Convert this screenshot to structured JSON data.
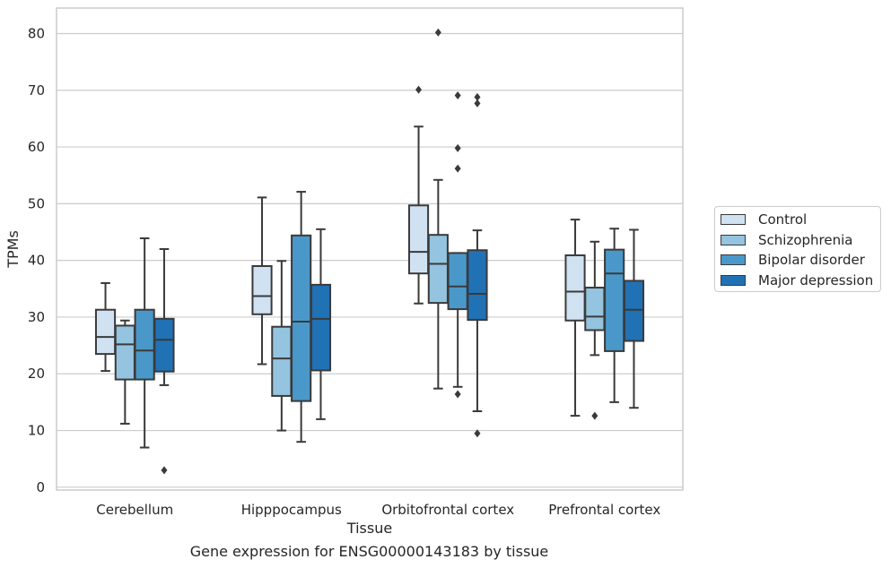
{
  "caption": "Gene expression for ENSG00000143183 by tissue",
  "chart_data": {
    "type": "boxplot",
    "xlabel": "Tissue",
    "ylabel": "TPMs",
    "ylim": [
      -0.5,
      84.5
    ],
    "yticks": [
      0,
      10,
      20,
      30,
      40,
      50,
      60,
      70,
      80
    ],
    "grid": "horizontal",
    "legend_position": "right",
    "categories": [
      "Cerebellum",
      "Hipppocampus",
      "Orbitofrontal cortex",
      "Prefrontal cortex"
    ],
    "series": [
      {
        "name": "Control",
        "color": "#d0e1f2",
        "boxes": [
          {
            "whislo": 20.5,
            "q1": 23.5,
            "med": 26.5,
            "q3": 31.3,
            "whishi": 36.0,
            "fliers": []
          },
          {
            "whislo": 21.7,
            "q1": 30.5,
            "med": 33.7,
            "q3": 39.0,
            "whishi": 51.1,
            "fliers": []
          },
          {
            "whislo": 32.4,
            "q1": 37.7,
            "med": 41.5,
            "q3": 49.7,
            "whishi": 63.6,
            "fliers": [
              70.1
            ]
          },
          {
            "whislo": 12.6,
            "q1": 29.4,
            "med": 34.5,
            "q3": 40.9,
            "whishi": 47.2,
            "fliers": []
          }
        ]
      },
      {
        "name": "Schizophrenia",
        "color": "#94c4df",
        "boxes": [
          {
            "whislo": 11.2,
            "q1": 19.0,
            "med": 25.2,
            "q3": 28.5,
            "whishi": 29.4,
            "fliers": []
          },
          {
            "whislo": 10.0,
            "q1": 16.1,
            "med": 22.7,
            "q3": 28.3,
            "whishi": 39.9,
            "fliers": []
          },
          {
            "whislo": 17.4,
            "q1": 32.5,
            "med": 39.4,
            "q3": 44.5,
            "whishi": 54.2,
            "fliers": [
              80.2
            ]
          },
          {
            "whislo": 23.3,
            "q1": 27.7,
            "med": 30.1,
            "q3": 35.2,
            "whishi": 43.3,
            "fliers": [
              12.6
            ]
          }
        ]
      },
      {
        "name": "Bipolar disorder",
        "color": "#4a98c9",
        "boxes": [
          {
            "whislo": 7.0,
            "q1": 19.0,
            "med": 24.1,
            "q3": 31.3,
            "whishi": 43.9,
            "fliers": []
          },
          {
            "whislo": 8.0,
            "q1": 15.2,
            "med": 29.2,
            "q3": 44.4,
            "whishi": 52.1,
            "fliers": []
          },
          {
            "whislo": 17.7,
            "q1": 31.4,
            "med": 35.4,
            "q3": 41.3,
            "whishi": 41.3,
            "fliers": [
              69.1,
              59.8,
              56.2,
              16.4
            ]
          },
          {
            "whislo": 15.0,
            "q1": 24.0,
            "med": 37.7,
            "q3": 41.9,
            "whishi": 45.6,
            "fliers": []
          }
        ]
      },
      {
        "name": "Major depression",
        "color": "#2171b5",
        "boxes": [
          {
            "whislo": 18.0,
            "q1": 20.4,
            "med": 26.0,
            "q3": 29.7,
            "whishi": 42.0,
            "fliers": [
              3.0
            ]
          },
          {
            "whislo": 12.0,
            "q1": 20.6,
            "med": 29.7,
            "q3": 35.7,
            "whishi": 45.5,
            "fliers": []
          },
          {
            "whislo": 13.4,
            "q1": 29.5,
            "med": 34.1,
            "q3": 41.8,
            "whishi": 45.3,
            "fliers": [
              68.8,
              67.7,
              9.5
            ]
          },
          {
            "whislo": 14.0,
            "q1": 25.8,
            "med": 31.3,
            "q3": 36.4,
            "whishi": 45.4,
            "fliers": []
          }
        ]
      }
    ]
  }
}
